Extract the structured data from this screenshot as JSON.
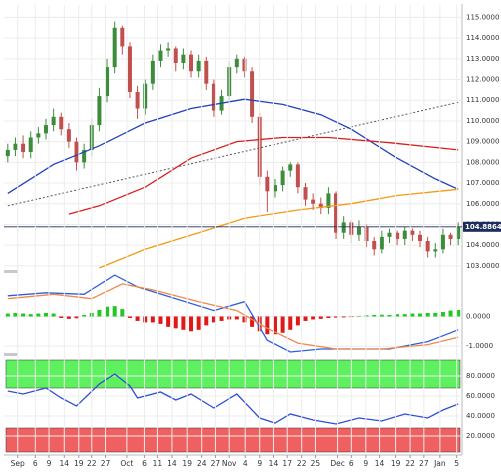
{
  "chart_data": [
    {
      "type": "candlestick",
      "xlim": [
        -0.5,
        59.5
      ],
      "ylim": [
        102.8,
        115.6
      ],
      "yticks": [
        {
          "value": 103,
          "label": "103.0000"
        },
        {
          "value": 104,
          "label": "104.0000"
        },
        {
          "value": 105,
          "label": "105.0000"
        },
        {
          "value": 106,
          "label": "106.0000"
        },
        {
          "value": 107,
          "label": "107.0000"
        },
        {
          "value": 108,
          "label": "108.0000"
        },
        {
          "value": 109,
          "label": "109.0000"
        },
        {
          "value": 110,
          "label": "110.0000"
        },
        {
          "value": 111,
          "label": "111.0000"
        },
        {
          "value": 112,
          "label": "112.0000"
        },
        {
          "value": 113,
          "label": "113.0000"
        },
        {
          "value": 114,
          "label": "114.0000"
        },
        {
          "value": 115,
          "label": "115.0000"
        }
      ],
      "up_color": "#3c8c3c",
      "down_color": "#c0504d",
      "open": [
        108.3,
        108.6,
        108.9,
        108.5,
        109.2,
        109.4,
        109.8,
        110.2,
        109.6,
        109.0,
        108.0,
        108.6,
        109.8,
        111.2,
        112.6,
        114.5,
        113.6,
        111.4,
        110.6,
        111.8,
        112.9,
        113.4,
        113.5,
        112.8,
        113.2,
        112.4,
        112.9,
        111.8,
        110.5,
        111.2,
        112.6,
        113.0,
        112.4,
        110.2,
        107.3,
        106.6,
        106.9,
        107.6,
        107.9,
        106.8,
        106.2,
        106.0,
        105.8,
        106.5,
        104.6,
        105.1,
        104.5,
        104.9,
        104.2,
        103.8,
        104.4,
        104.6,
        104.3,
        104.7,
        104.5,
        104.2,
        103.7,
        103.8,
        104.5,
        104.3
      ],
      "high": [
        108.9,
        109.2,
        109.3,
        109.5,
        109.7,
        110.1,
        110.6,
        110.4,
        109.9,
        109.2,
        108.9,
        110.1,
        111.6,
        113.0,
        114.8,
        114.6,
        113.8,
        111.7,
        112.0,
        113.2,
        113.7,
        113.8,
        113.6,
        113.5,
        113.4,
        113.2,
        113.1,
        112.0,
        111.5,
        112.9,
        113.2,
        113.1,
        112.6,
        110.4,
        107.6,
        107.2,
        107.8,
        108.0,
        108.0,
        107.0,
        106.5,
        106.3,
        106.8,
        106.6,
        105.4,
        105.2,
        105.2,
        105.0,
        104.4,
        104.7,
        104.8,
        104.7,
        104.9,
        104.8,
        104.7,
        104.4,
        104.1,
        104.8,
        104.6,
        105.1
      ],
      "low": [
        108.0,
        108.3,
        108.2,
        108.2,
        108.9,
        109.1,
        109.5,
        109.3,
        108.7,
        107.6,
        107.7,
        108.3,
        109.5,
        110.9,
        112.3,
        113.2,
        111.1,
        110.1,
        110.3,
        111.5,
        112.6,
        113.1,
        112.4,
        112.5,
        112.1,
        112.1,
        111.5,
        110.2,
        110.3,
        110.9,
        112.3,
        112.1,
        109.9,
        106.9,
        105.6,
        106.3,
        106.6,
        107.3,
        106.5,
        105.9,
        105.7,
        105.5,
        105.5,
        104.3,
        104.3,
        104.1,
        104.2,
        103.9,
        103.5,
        103.6,
        104.1,
        104.0,
        104.0,
        104.2,
        103.9,
        103.4,
        103.4,
        103.6,
        104.0,
        104.0
      ],
      "close": [
        108.6,
        108.9,
        108.5,
        109.2,
        109.4,
        109.8,
        110.2,
        109.6,
        109.0,
        108.0,
        108.6,
        109.8,
        111.2,
        112.6,
        114.5,
        113.6,
        111.4,
        110.6,
        111.8,
        112.9,
        113.4,
        113.5,
        112.8,
        113.2,
        112.4,
        112.9,
        111.8,
        110.5,
        111.2,
        112.6,
        113.0,
        112.4,
        110.2,
        107.3,
        106.6,
        106.9,
        107.6,
        107.9,
        106.8,
        106.2,
        106.0,
        105.8,
        106.5,
        104.6,
        105.1,
        104.5,
        104.9,
        104.2,
        103.8,
        104.4,
        104.6,
        104.3,
        104.7,
        104.5,
        104.2,
        103.7,
        103.8,
        104.5,
        104.3,
        104.9
      ],
      "series": [
        {
          "color": "#1f3fbf",
          "x": [
            0,
            6,
            12,
            18,
            24,
            31,
            36,
            41,
            45,
            51,
            56,
            59
          ],
          "values": [
            106.5,
            107.9,
            108.8,
            109.9,
            110.6,
            111.05,
            110.8,
            110.3,
            109.6,
            108.2,
            107.2,
            106.7
          ]
        },
        {
          "color": "#d62020",
          "x": [
            8,
            12,
            18,
            24,
            30,
            36,
            42,
            50,
            59
          ],
          "values": [
            105.5,
            105.9,
            106.8,
            108.2,
            109.0,
            109.2,
            109.2,
            108.95,
            108.6
          ]
        },
        {
          "color": "#f29a12",
          "x": [
            12,
            18,
            25,
            31,
            38,
            45,
            51,
            59
          ],
          "values": [
            102.9,
            103.8,
            104.6,
            105.3,
            105.7,
            106.0,
            106.4,
            106.7
          ]
        }
      ],
      "trendline": {
        "color": "#555555",
        "x": [
          0,
          59
        ],
        "values": [
          105.9,
          110.9
        ]
      },
      "last_price": {
        "value": 104.8864,
        "label": "104.8864",
        "color": "#1c2c5c"
      }
    },
    {
      "type": "macd",
      "xlim": [
        -0.5,
        59.5
      ],
      "ylim": [
        -1.2,
        1.47
      ],
      "yticks": [
        {
          "value": 0,
          "label": "0.0000"
        },
        {
          "value": -1,
          "label": "-1.0000"
        }
      ],
      "histogram": {
        "up_color": "#22c722",
        "down_color": "#e01818",
        "values": [
          0.1,
          0.12,
          0.1,
          0.08,
          0.1,
          0.12,
          0.1,
          -0.05,
          -0.08,
          -0.06,
          0.05,
          0.12,
          0.22,
          0.33,
          0.35,
          0.25,
          -0.05,
          -0.15,
          -0.2,
          -0.2,
          -0.25,
          -0.35,
          -0.4,
          -0.45,
          -0.5,
          -0.45,
          -0.3,
          -0.2,
          -0.15,
          -0.1,
          -0.1,
          -0.2,
          -0.35,
          -0.5,
          -0.6,
          -0.6,
          -0.55,
          -0.45,
          -0.3,
          -0.15,
          -0.1,
          -0.08,
          -0.05,
          -0.04,
          -0.03,
          -0.02,
          0.02,
          0.04,
          0.05,
          0.06,
          0.05,
          0.08,
          0.08,
          0.1,
          0.1,
          0.12,
          0.12,
          0.15,
          0.2,
          0.22
        ]
      },
      "series": [
        {
          "color": "#2f5fd8",
          "x": [
            0,
            5,
            10,
            14,
            17,
            22,
            27,
            31,
            34,
            37,
            41,
            45,
            50,
            55,
            59
          ],
          "values": [
            0.7,
            0.8,
            0.75,
            1.4,
            1.0,
            0.6,
            0.2,
            0.5,
            -0.8,
            -1.2,
            -1.1,
            -1.1,
            -1.1,
            -0.85,
            -0.45
          ]
        },
        {
          "color": "#f0884a",
          "x": [
            0,
            6,
            11,
            15,
            19,
            25,
            30,
            34,
            38,
            43,
            49,
            55,
            59
          ],
          "values": [
            0.6,
            0.75,
            0.6,
            1.1,
            0.9,
            0.5,
            0.2,
            -0.4,
            -0.9,
            -1.1,
            -1.1,
            -0.95,
            -0.7
          ]
        }
      ]
    },
    {
      "type": "rsi",
      "xlim": [
        -0.5,
        59.5
      ],
      "ylim": [
        4,
        99
      ],
      "yticks": [
        {
          "value": 20,
          "label": "20.0000"
        },
        {
          "value": 40,
          "label": "40.0000"
        },
        {
          "value": 60,
          "label": "60.0000"
        },
        {
          "value": 80,
          "label": "80.0000"
        }
      ],
      "bands": [
        {
          "from": 68,
          "to": 96,
          "color": "#5ef05e"
        },
        {
          "from": 4,
          "to": 28,
          "color": "#f06060"
        }
      ],
      "series": [
        {
          "color": "#2f4fd0",
          "x": [
            0,
            2,
            5,
            7,
            9,
            12,
            14,
            16,
            17,
            20,
            22,
            24,
            27,
            30,
            33,
            35,
            37,
            40,
            43,
            46,
            49,
            52,
            55,
            57,
            59
          ],
          "values": [
            65,
            62,
            68,
            58,
            50,
            72,
            82,
            70,
            58,
            64,
            56,
            62,
            48,
            62,
            38,
            33,
            42,
            36,
            32,
            38,
            35,
            42,
            38,
            46,
            52
          ]
        }
      ],
      "xticks": [
        {
          "value": 1.3,
          "label": "Sep"
        },
        {
          "value": 3.6,
          "label": "6"
        },
        {
          "value": 5.4,
          "label": "9"
        },
        {
          "value": 7.4,
          "label": "14"
        },
        {
          "value": 9.3,
          "label": "19"
        },
        {
          "value": 11.0,
          "label": "22"
        },
        {
          "value": 12.8,
          "label": "27"
        },
        {
          "value": 15.6,
          "label": "Oct"
        },
        {
          "value": 17.9,
          "label": "6"
        },
        {
          "value": 19.6,
          "label": "11"
        },
        {
          "value": 21.5,
          "label": "14"
        },
        {
          "value": 23.5,
          "label": "19"
        },
        {
          "value": 25.4,
          "label": "24"
        },
        {
          "value": 27.2,
          "label": "27"
        },
        {
          "value": 29.0,
          "label": "Nov"
        },
        {
          "value": 31.1,
          "label": "4"
        },
        {
          "value": 33.0,
          "label": "9"
        },
        {
          "value": 34.8,
          "label": "14"
        },
        {
          "value": 36.6,
          "label": "17"
        },
        {
          "value": 38.5,
          "label": "22"
        },
        {
          "value": 40.3,
          "label": "25"
        },
        {
          "value": 43.2,
          "label": "Dec"
        },
        {
          "value": 45.0,
          "label": "6"
        },
        {
          "value": 46.9,
          "label": "9"
        },
        {
          "value": 48.7,
          "label": "14"
        },
        {
          "value": 50.8,
          "label": "19"
        },
        {
          "value": 52.7,
          "label": "22"
        },
        {
          "value": 54.5,
          "label": "27"
        },
        {
          "value": 56.6,
          "label": "Jan"
        },
        {
          "value": 58.8,
          "label": "5"
        }
      ]
    }
  ]
}
